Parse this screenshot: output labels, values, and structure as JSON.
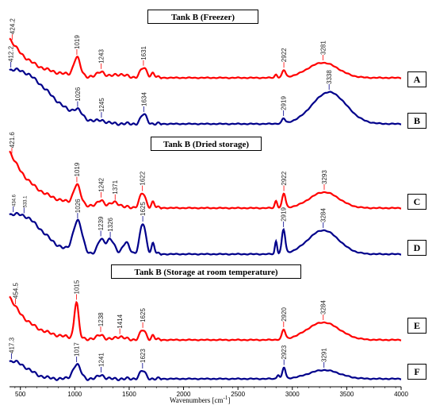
{
  "chart_data": {
    "type": "line",
    "xlabel": "Wavenumbers [cm",
    "xlabel_sup": "-1",
    "xlabel_close": "]",
    "xlim": [
      400,
      4000
    ],
    "xticks": [
      500,
      1000,
      1500,
      2000,
      2500,
      3000,
      3500,
      4000
    ],
    "panels": [
      {
        "title": "Tank B (Freezer)",
        "series": [
          {
            "label": "A",
            "color": "#ff0000",
            "peaks": [
              {
                "x": 424.2,
                "label": "424.2"
              },
              {
                "x": 1019,
                "label": "1019"
              },
              {
                "x": 1243,
                "label": "1243"
              },
              {
                "x": 1631,
                "label": "1631"
              },
              {
                "x": 2922,
                "label": "2922"
              },
              {
                "x": 3281,
                "label": "3281"
              }
            ]
          },
          {
            "label": "B",
            "color": "#00008b",
            "peaks": [
              {
                "x": 412.2,
                "label": "412.2"
              },
              {
                "x": 1026,
                "label": "1026"
              },
              {
                "x": 1245,
                "label": "1245"
              },
              {
                "x": 1634,
                "label": "1634"
              },
              {
                "x": 2919,
                "label": "2919"
              },
              {
                "x": 3338,
                "label": "3338"
              }
            ]
          }
        ]
      },
      {
        "title": "Tank B (Dried storage)",
        "series": [
          {
            "label": "C",
            "color": "#ff0000",
            "peaks": [
              {
                "x": 421.6,
                "label": "421.6"
              },
              {
                "x": 1019,
                "label": "1019"
              },
              {
                "x": 1242,
                "label": "1242"
              },
              {
                "x": 1371,
                "label": "1371"
              },
              {
                "x": 1622,
                "label": "1622"
              },
              {
                "x": 2922,
                "label": "2922"
              },
              {
                "x": 3293,
                "label": "3293"
              }
            ]
          },
          {
            "label": "D",
            "color": "#00008b",
            "peaks": [
              {
                "x": 434.6,
                "label": "434.6"
              },
              {
                "x": 533.1,
                "label": "533.1"
              },
              {
                "x": 1026,
                "label": "1026"
              },
              {
                "x": 1239,
                "label": "1239"
              },
              {
                "x": 1326,
                "label": "1326"
              },
              {
                "x": 1625,
                "label": "1625"
              },
              {
                "x": 2919,
                "label": "2919"
              },
              {
                "x": 3284,
                "label": "3284"
              }
            ]
          }
        ]
      },
      {
        "title": "Tank B (Storage at room temperature)",
        "series": [
          {
            "label": "E",
            "color": "#ff0000",
            "peaks": [
              {
                "x": 454.5,
                "label": "454.5"
              },
              {
                "x": 1015,
                "label": "1015"
              },
              {
                "x": 1238,
                "label": "1238"
              },
              {
                "x": 1414,
                "label": "1414"
              },
              {
                "x": 1625,
                "label": "1625"
              },
              {
                "x": 2920,
                "label": "2920"
              },
              {
                "x": 3284,
                "label": "3284"
              }
            ]
          },
          {
            "label": "F",
            "color": "#00008b",
            "peaks": [
              {
                "x": 417.3,
                "label": "417.3"
              },
              {
                "x": 1017,
                "label": "1017"
              },
              {
                "x": 1241,
                "label": "1241"
              },
              {
                "x": 1623,
                "label": "1623"
              },
              {
                "x": 2923,
                "label": "2923"
              },
              {
                "x": 3291,
                "label": "3291"
              }
            ]
          }
        ]
      }
    ]
  }
}
